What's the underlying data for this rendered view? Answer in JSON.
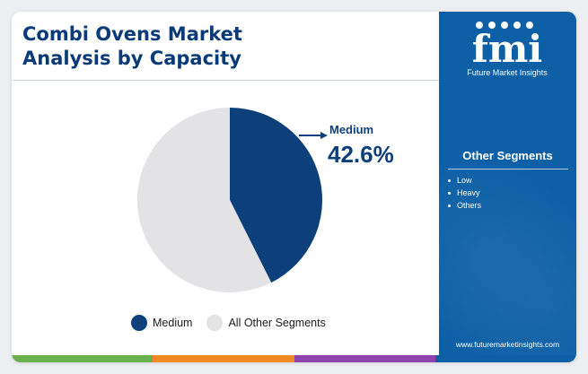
{
  "title": "Combi Ovens Market Analysis by Capacity",
  "brand": {
    "logo_text": "fmi",
    "name": "Future Market Insights",
    "url": "www.futuremarketinsights.com"
  },
  "sidebar": {
    "title": "Other Segments",
    "items": [
      "Low",
      "Heavy",
      "Others"
    ]
  },
  "colors": {
    "primary": "#0d3f7a",
    "other": "#e3e3e5",
    "title": "#0a3a78",
    "sidebar": "#0d5fa6",
    "stripe": [
      "#6ab04c",
      "#f08a24",
      "#8e44ad",
      "#0d5fa6"
    ]
  },
  "chart_data": {
    "type": "pie",
    "slices": [
      {
        "label": "Medium",
        "value": 42.6,
        "color": "#0d3f7a"
      },
      {
        "label": "All Other Segments",
        "value": 57.4,
        "color": "#e3e3e5"
      }
    ],
    "annotation": {
      "label": "Medium",
      "value_text": "42.6%"
    },
    "legend": [
      "Medium",
      "All Other Segments"
    ],
    "legend_position": "bottom"
  }
}
